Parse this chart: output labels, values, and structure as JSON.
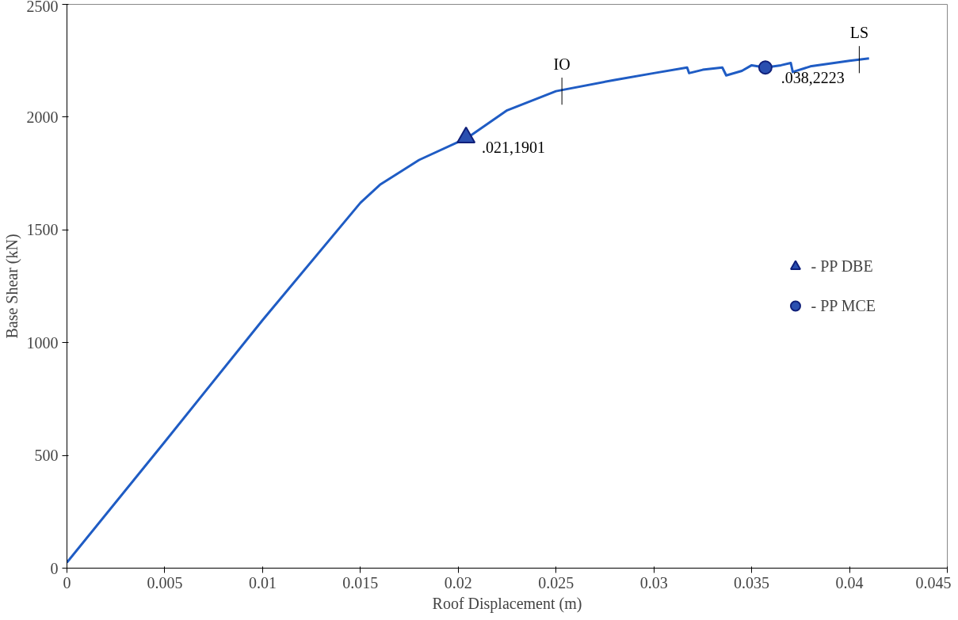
{
  "chart_data": {
    "type": "line",
    "xlabel": "Roof Displacement (m)",
    "ylabel": "Base Shear (kN)",
    "xlim": [
      0,
      0.045
    ],
    "ylim": [
      0,
      2500
    ],
    "xticks": [
      0,
      0.005,
      0.01,
      0.015,
      0.02,
      0.025,
      0.03,
      0.035,
      0.04,
      0.045
    ],
    "yticks": [
      0,
      500,
      1000,
      1500,
      2000,
      2500
    ],
    "grid": false,
    "legend": "right",
    "series": [
      {
        "color": "#1f5cc4",
        "marker": "none",
        "x": [
          0,
          0.005,
          0.01,
          0.015,
          0.016,
          0.018,
          0.0205,
          0.0225,
          0.025,
          0.028,
          0.03,
          0.0317,
          0.0318,
          0.0325,
          0.0335,
          0.0337,
          0.0345,
          0.035,
          0.0357,
          0.0365,
          0.037,
          0.0371,
          0.038,
          0.04,
          0.041
        ],
        "values": [
          25,
          560,
          1100,
          1620,
          1700,
          1810,
          1910,
          2030,
          2115,
          2165,
          2195,
          2220,
          2195,
          2210,
          2220,
          2185,
          2205,
          2230,
          2220,
          2230,
          2240,
          2200,
          2225,
          2250,
          2260
        ]
      },
      {
        "type": "scatter",
        "name": "- PP DBE",
        "color": "#2a4fb0",
        "marker": "triangle",
        "x": [
          0.0204
        ],
        "values": [
          1910
        ]
      },
      {
        "type": "scatter",
        "name": "- PP MCE",
        "color": "#2a4fb0",
        "marker": "circle",
        "x": [
          0.0357
        ],
        "values": [
          2220
        ]
      }
    ],
    "annotations": [
      {
        "text": ".021,1901",
        "x": 0.0204,
        "y": 1910
      },
      {
        "text": ".038,2223",
        "x": 0.0357,
        "y": 2220
      },
      {
        "text": "IO",
        "x": 0.0253,
        "y": 2115
      },
      {
        "text": "LS",
        "x": 0.0405,
        "y": 2255
      }
    ]
  }
}
